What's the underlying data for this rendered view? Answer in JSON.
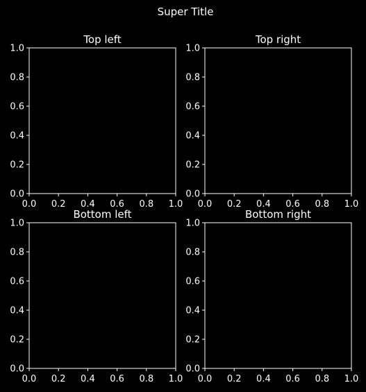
{
  "figure": {
    "suptitle": "Super Title",
    "background": "#000000",
    "foreground": "#ffffff"
  },
  "chart_data": [
    {
      "type": "line",
      "title": "Top left",
      "series": [],
      "xlim": [
        0.0,
        1.0
      ],
      "ylim": [
        0.0,
        1.0
      ],
      "xticks": [
        "0.0",
        "0.2",
        "0.4",
        "0.6",
        "0.8",
        "1.0"
      ],
      "yticks": [
        "0.0",
        "0.2",
        "0.4",
        "0.6",
        "0.8",
        "1.0"
      ],
      "grid": false
    },
    {
      "type": "line",
      "title": "Top right",
      "series": [],
      "xlim": [
        0.0,
        1.0
      ],
      "ylim": [
        0.0,
        1.0
      ],
      "xticks": [
        "0.0",
        "0.2",
        "0.4",
        "0.6",
        "0.8",
        "1.0"
      ],
      "yticks": [
        "0.0",
        "0.2",
        "0.4",
        "0.6",
        "0.8",
        "1.0"
      ],
      "grid": false
    },
    {
      "type": "line",
      "title": "Bottom left",
      "series": [],
      "xlim": [
        0.0,
        1.0
      ],
      "ylim": [
        0.0,
        1.0
      ],
      "xticks": [
        "0.0",
        "0.2",
        "0.4",
        "0.6",
        "0.8",
        "1.0"
      ],
      "yticks": [
        "0.0",
        "0.2",
        "0.4",
        "0.6",
        "0.8",
        "1.0"
      ],
      "grid": false
    },
    {
      "type": "line",
      "title": "Bottom right",
      "series": [],
      "xlim": [
        0.0,
        1.0
      ],
      "ylim": [
        0.0,
        1.0
      ],
      "xticks": [
        "0.0",
        "0.2",
        "0.4",
        "0.6",
        "0.8",
        "1.0"
      ],
      "yticks": [
        "0.0",
        "0.2",
        "0.4",
        "0.6",
        "0.8",
        "1.0"
      ],
      "grid": false
    }
  ]
}
